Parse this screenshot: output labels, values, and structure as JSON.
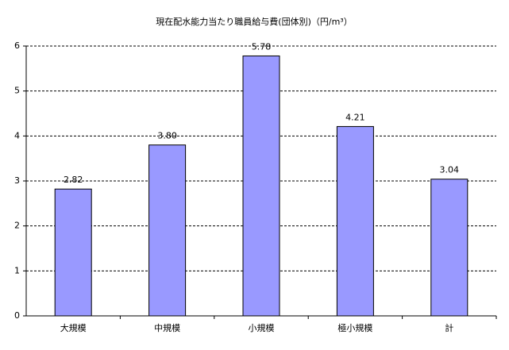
{
  "chart_data": {
    "type": "bar",
    "title": "現在配水能力当たり職員給与費(団体別)（円/m³）",
    "categories": [
      "大規模",
      "中規模",
      "小規模",
      "極小規模",
      "計"
    ],
    "values": [
      2.82,
      3.8,
      5.78,
      4.21,
      3.04
    ],
    "value_labels": [
      "2.82",
      "3.80",
      "5.78",
      "4.21",
      "3.04"
    ],
    "color": "#9999ff",
    "ylim": [
      0,
      6
    ],
    "yticks": [
      0,
      1,
      2,
      3,
      4,
      5,
      6
    ],
    "grid": true
  }
}
